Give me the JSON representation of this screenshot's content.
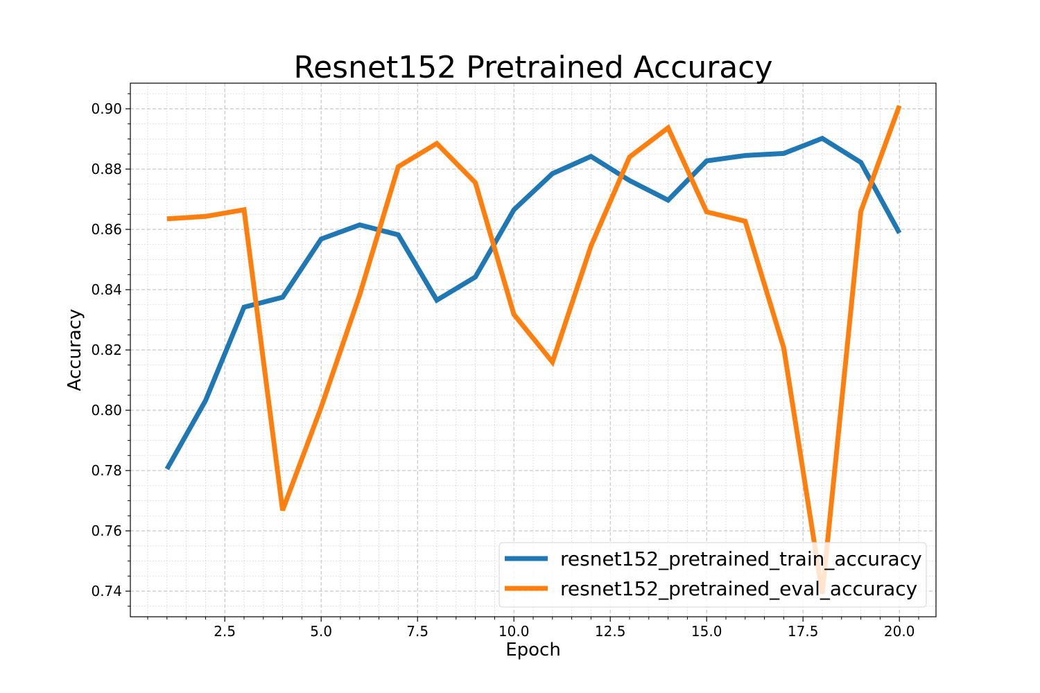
{
  "chart_data": {
    "type": "line",
    "title": "Resnet152 Pretrained Accuracy",
    "xlabel": "Epoch",
    "ylabel": "Accuracy",
    "xlim": [
      0.05,
      20.95
    ],
    "ylim": [
      0.7315,
      0.9085
    ],
    "xticks": [
      2.5,
      5.0,
      7.5,
      10.0,
      12.5,
      15.0,
      17.5,
      20.0
    ],
    "xtick_labels": [
      "2.5",
      "5.0",
      "7.5",
      "10.0",
      "12.5",
      "15.0",
      "17.5",
      "20.0"
    ],
    "yticks": [
      0.74,
      0.76,
      0.78,
      0.8,
      0.82,
      0.84,
      0.86,
      0.88,
      0.9
    ],
    "ytick_labels": [
      "0.74",
      "0.76",
      "0.78",
      "0.80",
      "0.82",
      "0.84",
      "0.86",
      "0.88",
      "0.90"
    ],
    "grid": true,
    "minor_grid": true,
    "legend_position": "lower-right",
    "x": [
      1,
      2,
      3,
      4,
      5,
      6,
      7,
      8,
      9,
      10,
      11,
      12,
      13,
      14,
      15,
      16,
      17,
      18,
      19,
      20
    ],
    "series": [
      {
        "name": "resnet152_pretrained_train_accuracy",
        "color": "#1f77b4",
        "values": [
          0.7805,
          0.8032,
          0.8342,
          0.8375,
          0.8568,
          0.8615,
          0.8582,
          0.8365,
          0.8442,
          0.8665,
          0.8785,
          0.8842,
          0.8762,
          0.8697,
          0.8827,
          0.8845,
          0.8852,
          0.8902,
          0.8822,
          0.8588
        ]
      },
      {
        "name": "resnet152_pretrained_eval_accuracy",
        "color": "#ff7f0e",
        "values": [
          0.8635,
          0.8643,
          0.8665,
          0.7668,
          0.801,
          0.8383,
          0.8808,
          0.8885,
          0.8755,
          0.8318,
          0.816,
          0.8545,
          0.884,
          0.8937,
          0.8658,
          0.8627,
          0.8207,
          0.7392,
          0.866,
          0.901
        ]
      }
    ]
  }
}
